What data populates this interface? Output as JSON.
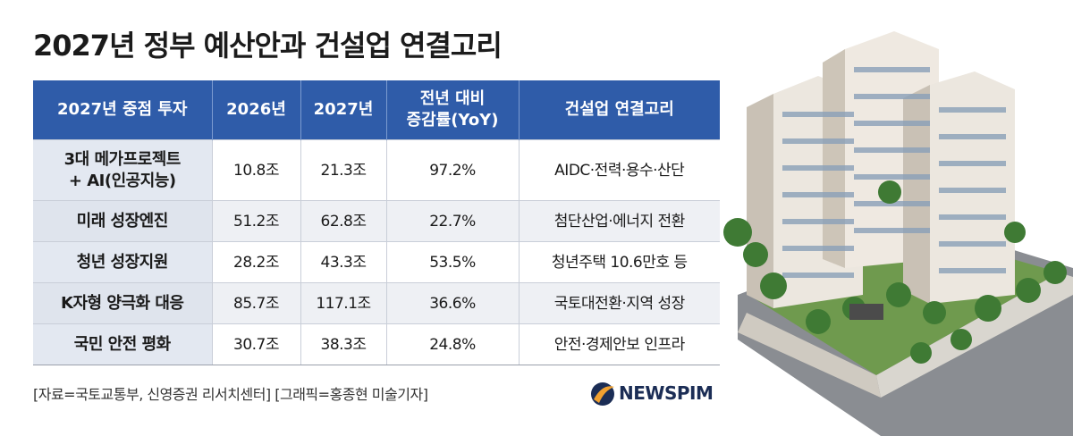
{
  "title": "2027년 정부 예산안과 건설업 연결고리",
  "table": {
    "headers": [
      [
        "2027년 중점 투자"
      ],
      [
        "2026년"
      ],
      [
        "2027년"
      ],
      [
        "전년 대비",
        "증감률(YoY)"
      ],
      [
        "건설업 연결고리"
      ]
    ],
    "rows": [
      [
        [
          "3대 메가프로젝트",
          "+ AI(인공지능)"
        ],
        "10.8조",
        "21.3조",
        "97.2%",
        "AIDC·전력·용수·산단"
      ],
      [
        [
          "미래 성장엔진"
        ],
        "51.2조",
        "62.8조",
        "22.7%",
        "첨단산업·에너지 전환"
      ],
      [
        [
          "청년 성장지원"
        ],
        "28.2조",
        "43.3조",
        "53.5%",
        "청년주택 10.6만호 등"
      ],
      [
        [
          "K자형 양극화 대응"
        ],
        "85.7조",
        "117.1조",
        "36.6%",
        "국토대전환·지역 성장"
      ],
      [
        [
          "국민 안전 평화"
        ],
        "30.7조",
        "38.3조",
        "24.8%",
        "안전·경제안보 인프라"
      ]
    ]
  },
  "source": "[자료=국토교통부, 신영증권 리서치센터] [그래픽=홍종현 미술기자]",
  "logo": "NEWSPIM"
}
